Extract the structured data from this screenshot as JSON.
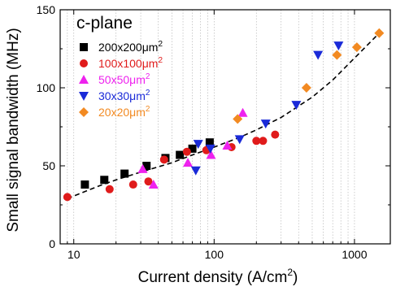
{
  "chart_data": {
    "type": "scatter",
    "xscale": "log",
    "xlim": [
      8,
      1800
    ],
    "ylim": [
      0,
      150
    ],
    "xticks": [
      10,
      100,
      1000
    ],
    "xtick_labels": [
      "10",
      "100",
      "1000"
    ],
    "yticks": [
      0,
      50,
      100,
      150
    ],
    "ytick_labels": [
      "0",
      "50",
      "100",
      "150"
    ],
    "xlabel_main": "Current density (A/cm",
    "xlabel_sup": "2",
    "xlabel_end": ")",
    "ylabel": "Small signal bandwidth (MHz)",
    "grid": "vertical minor dotted",
    "legend_title": "c-plane",
    "legend_position": "top-left",
    "series": [
      {
        "name": "200x200μm2",
        "label_main": "200x200",
        "label_unit": "μm",
        "label_sup": "2",
        "marker": "square",
        "color": "#000000",
        "label_color": "#000000",
        "points": [
          [
            12,
            38
          ],
          [
            16.5,
            41
          ],
          [
            23,
            45
          ],
          [
            33,
            50
          ],
          [
            45,
            55
          ],
          [
            57,
            57
          ],
          [
            70,
            61
          ],
          [
            93,
            65
          ]
        ]
      },
      {
        "name": "100x100μm2",
        "label_main": "100x100",
        "label_unit": "μm",
        "label_sup": "2",
        "marker": "circle",
        "color": "#e01b1b",
        "label_color": "#e01b1b",
        "points": [
          [
            9,
            30
          ],
          [
            18,
            35
          ],
          [
            26.5,
            38
          ],
          [
            34,
            40
          ],
          [
            44,
            54
          ],
          [
            64,
            59
          ],
          [
            88,
            60
          ],
          [
            133,
            62
          ],
          [
            200,
            66
          ],
          [
            223,
            66
          ],
          [
            272,
            70
          ]
        ]
      },
      {
        "name": "50x50μm2",
        "label_main": "50x50",
        "label_unit": "μm",
        "label_sup": "2",
        "marker": "triangle-up",
        "color": "#ee22ee",
        "label_color": "#ee22ee",
        "points": [
          [
            31,
            48
          ],
          [
            37,
            38
          ],
          [
            65,
            52
          ],
          [
            95,
            57
          ],
          [
            124,
            63
          ],
          [
            160,
            84
          ]
        ]
      },
      {
        "name": "30x30μm2",
        "label_main": "30x30",
        "label_unit": "μm",
        "label_sup": "2",
        "marker": "triangle-down",
        "color": "#1a2ad8",
        "label_color": "#1a2ad8",
        "points": [
          [
            74,
            47
          ],
          [
            77,
            64
          ],
          [
            94,
            61
          ],
          [
            152,
            67
          ],
          [
            233,
            77
          ],
          [
            385,
            89
          ],
          [
            550,
            121
          ],
          [
            770,
            127
          ]
        ]
      },
      {
        "name": "20x20μm2",
        "label_main": "20x20",
        "label_unit": "μm",
        "label_sup": "2",
        "marker": "diamond",
        "color": "#f28a22",
        "label_color": "#f28a22",
        "points": [
          [
            147,
            80
          ],
          [
            455,
            100
          ],
          [
            750,
            121
          ],
          [
            1040,
            126
          ],
          [
            1500,
            135
          ]
        ]
      }
    ],
    "fit": {
      "style": "dashed",
      "color": "#000000",
      "points": [
        [
          9,
          29
        ],
        [
          15,
          37
        ],
        [
          20,
          41
        ],
        [
          30,
          46
        ],
        [
          50,
          52
        ],
        [
          70,
          57
        ],
        [
          100,
          62
        ],
        [
          150,
          68
        ],
        [
          200,
          73
        ],
        [
          300,
          81
        ],
        [
          500,
          94
        ],
        [
          700,
          105
        ],
        [
          1000,
          119
        ],
        [
          1500,
          135
        ]
      ]
    }
  }
}
